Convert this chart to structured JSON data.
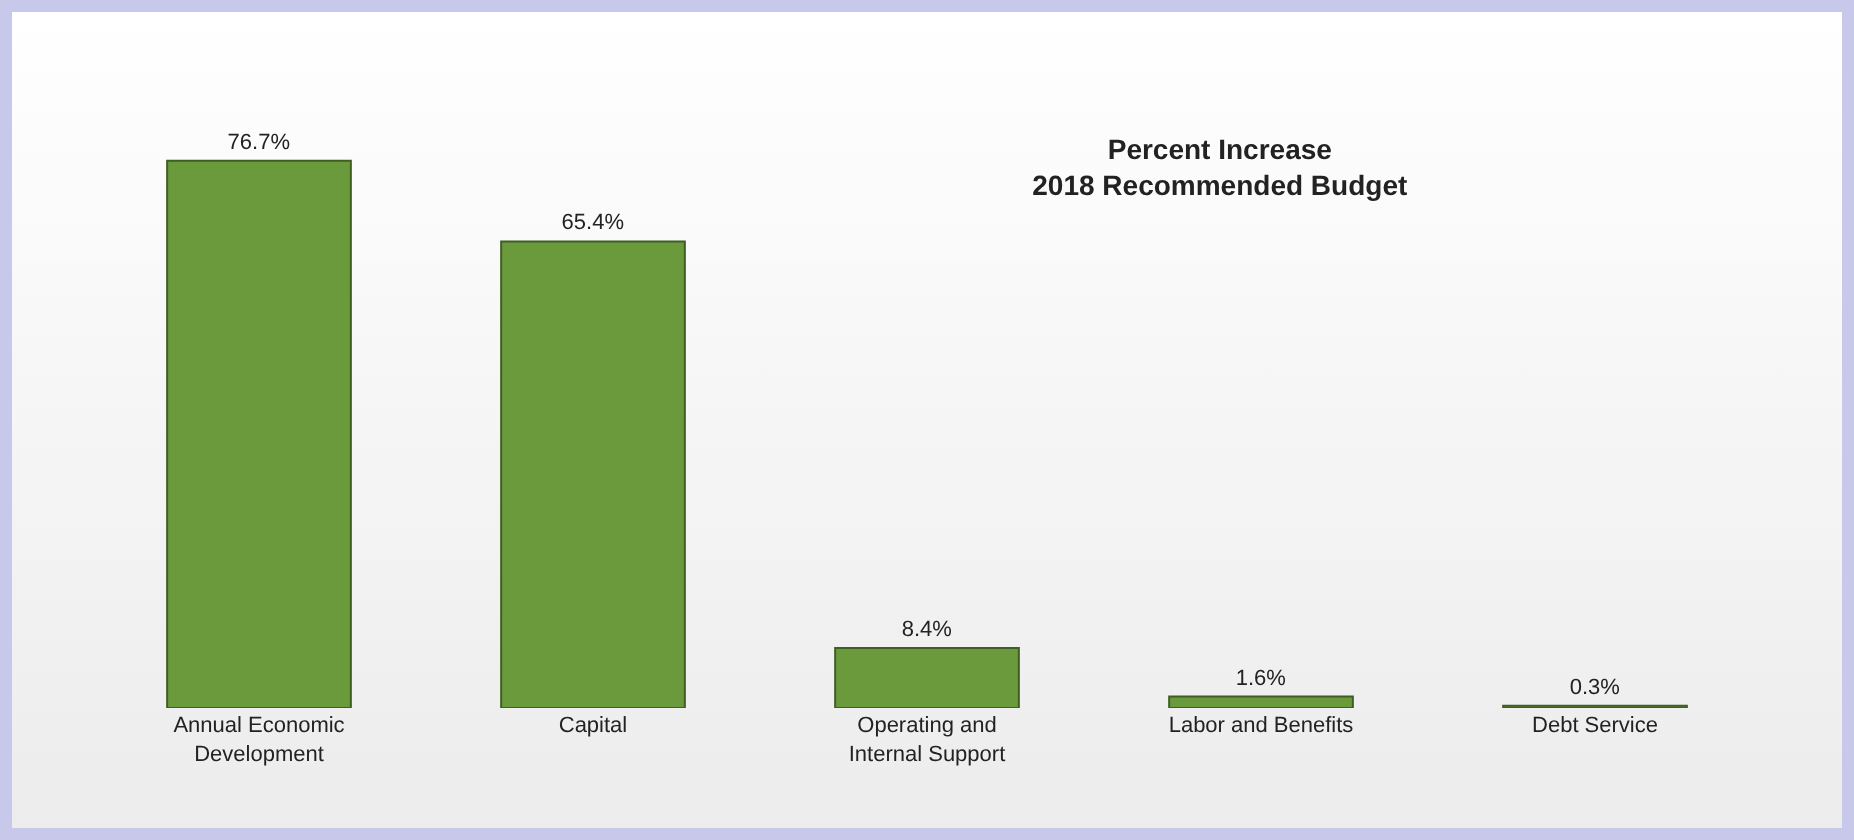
{
  "chart_data": {
    "type": "bar",
    "title": "Percent Increase\n2018 Recommended Budget",
    "categories": [
      "Annual Economic Development",
      "Capital",
      "Operating and Internal Support",
      "Labor and Benefits",
      "Debt Service"
    ],
    "values": [
      76.7,
      65.4,
      8.4,
      1.6,
      0.3
    ],
    "value_labels": [
      "76.7%",
      "65.4%",
      "8.4%",
      "1.6%",
      "0.3%"
    ],
    "color": "#6b9a3c",
    "grid": false,
    "legend": false
  }
}
